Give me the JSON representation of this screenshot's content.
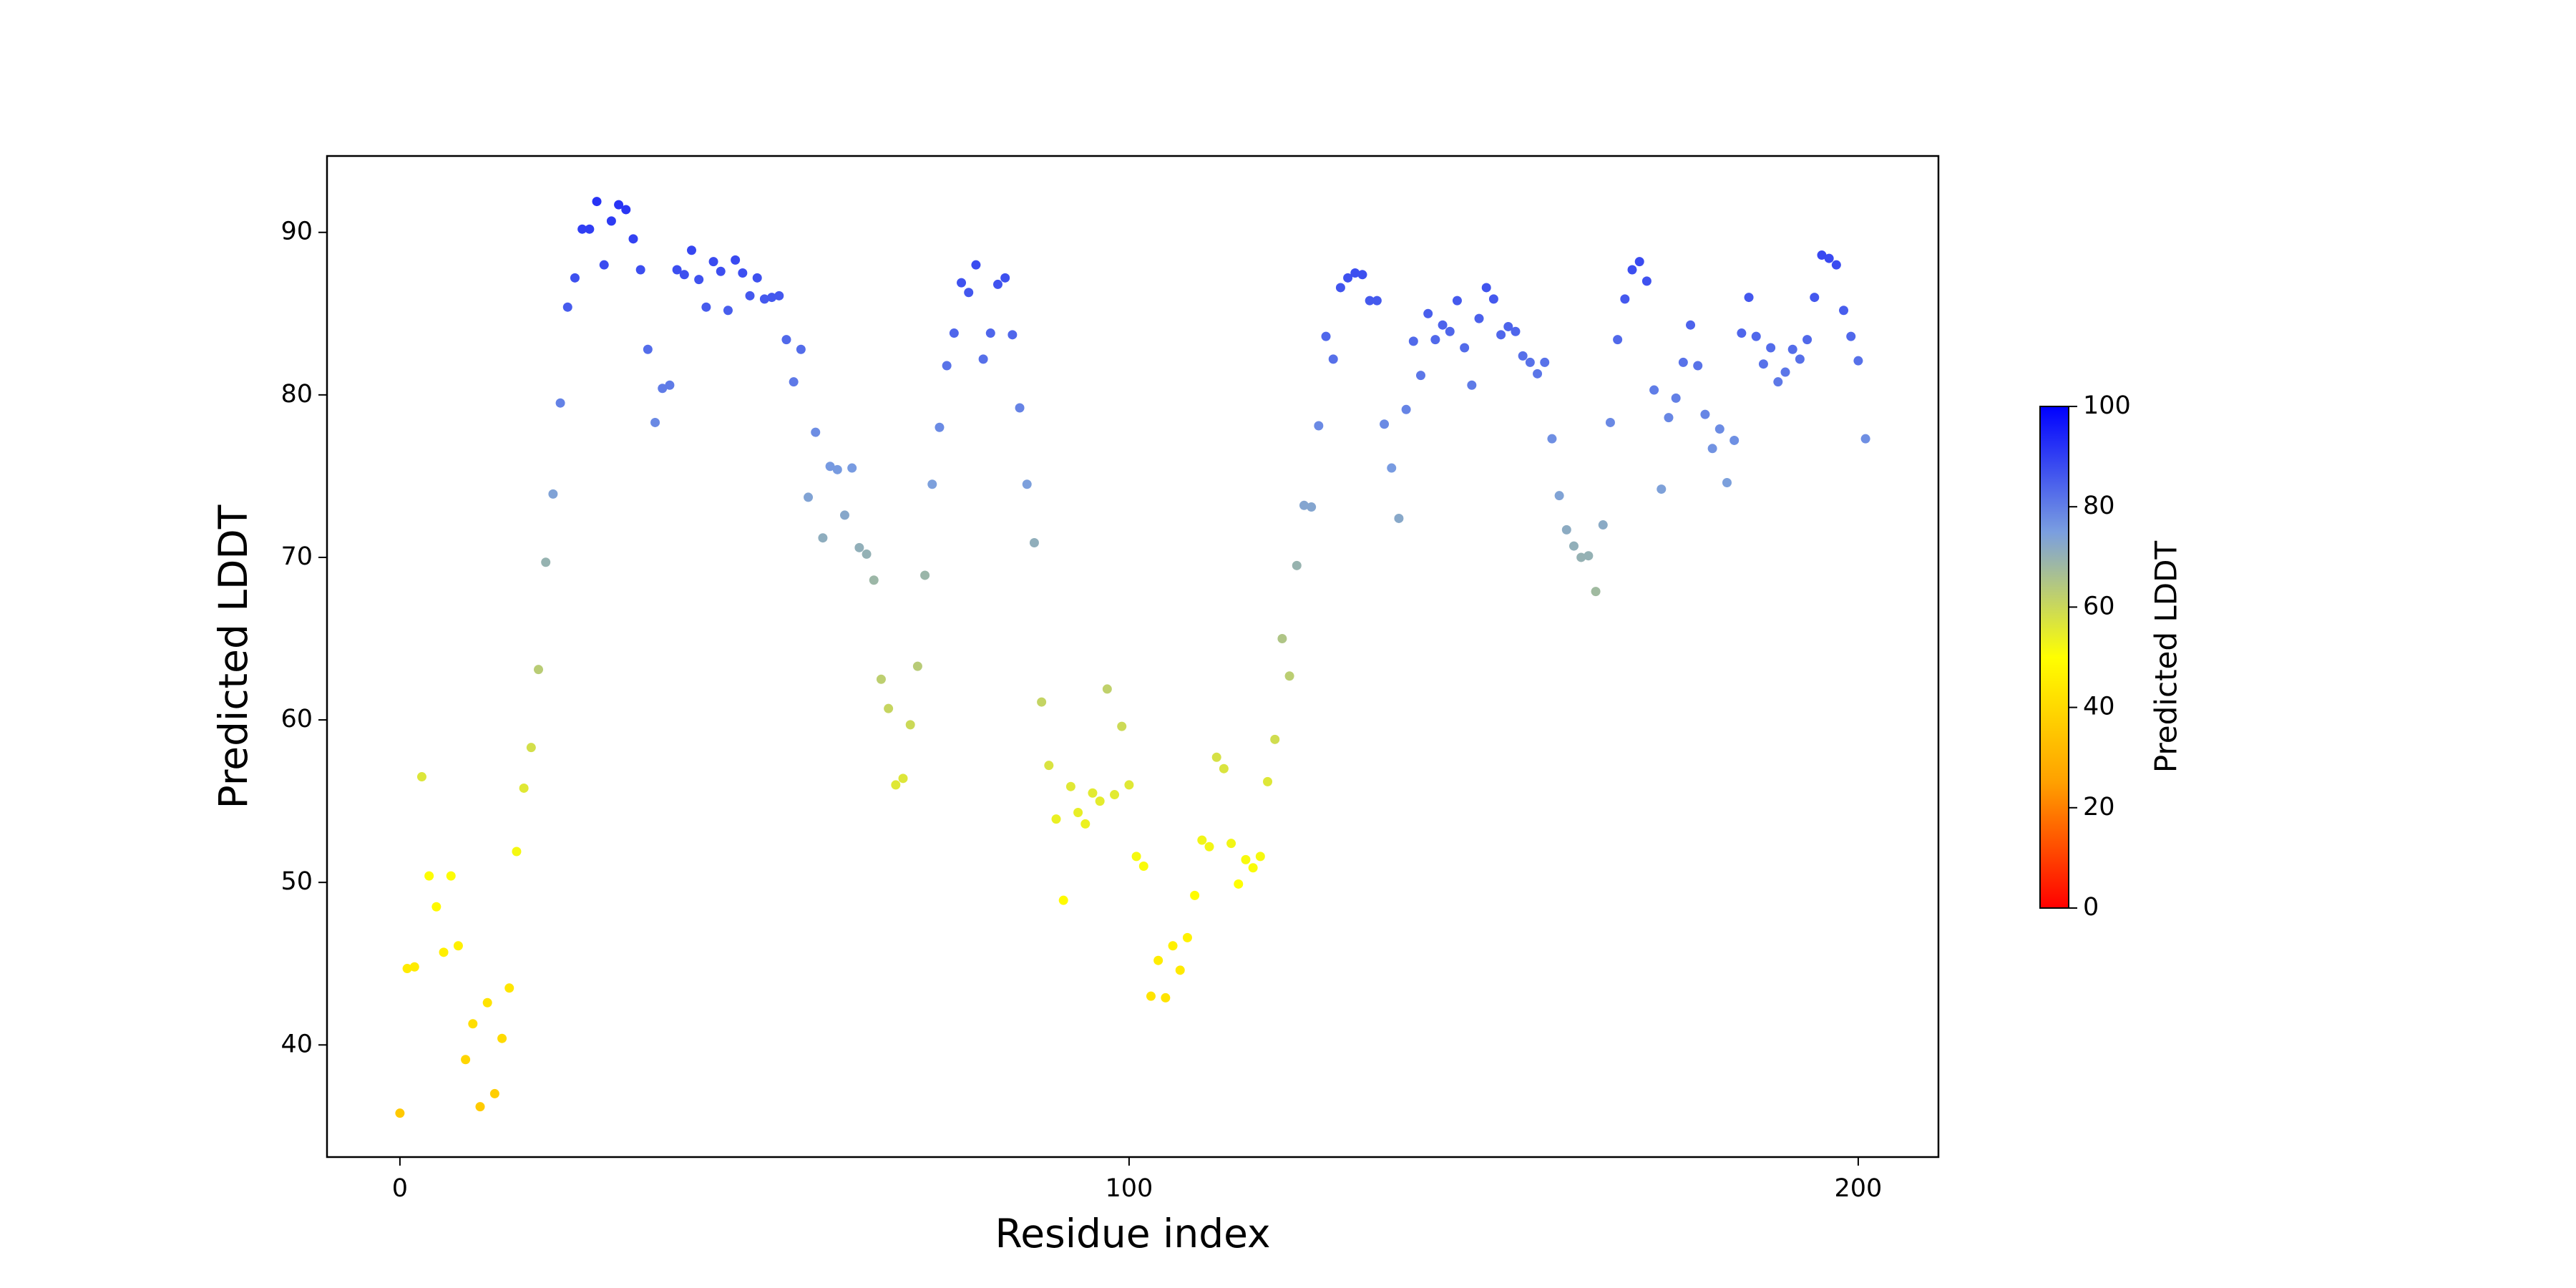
{
  "chart_data": {
    "type": "scatter",
    "xlabel": "Residue index",
    "ylabel": "Predicted LDDT",
    "x": [
      0,
      1,
      2,
      3,
      4,
      5,
      6,
      7,
      8,
      9,
      10,
      11,
      12,
      13,
      14,
      15,
      16,
      17,
      18,
      19,
      20,
      21,
      22,
      23,
      24,
      25,
      26,
      27,
      28,
      29,
      30,
      31,
      32,
      33,
      34,
      35,
      36,
      37,
      38,
      39,
      40,
      41,
      42,
      43,
      44,
      45,
      46,
      47,
      48,
      49,
      50,
      51,
      52,
      53,
      54,
      55,
      56,
      57,
      58,
      59,
      60,
      61,
      62,
      63,
      64,
      65,
      66,
      67,
      68,
      69,
      70,
      71,
      72,
      73,
      74,
      75,
      76,
      77,
      78,
      79,
      80,
      81,
      82,
      83,
      84,
      85,
      86,
      87,
      88,
      89,
      90,
      91,
      92,
      93,
      94,
      95,
      96,
      97,
      98,
      99,
      100,
      101,
      102,
      103,
      104,
      105,
      106,
      107,
      108,
      109,
      110,
      111,
      112,
      113,
      114,
      115,
      116,
      117,
      118,
      119,
      120,
      121,
      122,
      123,
      124,
      125,
      126,
      127,
      128,
      129,
      130,
      131,
      132,
      133,
      134,
      135,
      136,
      137,
      138,
      139,
      140,
      141,
      142,
      143,
      144,
      145,
      146,
      147,
      148,
      149,
      150,
      151,
      152,
      153,
      154,
      155,
      156,
      157,
      158,
      159,
      160,
      161,
      162,
      163,
      164,
      165,
      166,
      167,
      168,
      169,
      170,
      171,
      172,
      173,
      174,
      175,
      176,
      177,
      178,
      179,
      180,
      181,
      182,
      183,
      184,
      185,
      186,
      187,
      188,
      189,
      190,
      191,
      192,
      193,
      194,
      195,
      196,
      197,
      198,
      199,
      200,
      201
    ],
    "values": [
      35.8,
      44.7,
      44.8,
      56.5,
      50.4,
      48.5,
      45.7,
      50.4,
      46.1,
      39.1,
      41.3,
      36.2,
      42.6,
      37.0,
      40.4,
      43.5,
      51.9,
      55.8,
      58.3,
      63.1,
      69.7,
      73.9,
      79.5,
      85.4,
      87.2,
      90.2,
      90.2,
      91.9,
      88.0,
      90.7,
      91.7,
      91.4,
      89.6,
      87.7,
      82.8,
      78.3,
      80.4,
      80.6,
      87.7,
      87.4,
      88.9,
      87.1,
      85.4,
      88.2,
      87.6,
      85.2,
      88.3,
      87.5,
      86.1,
      87.2,
      85.9,
      86.0,
      86.1,
      83.4,
      80.8,
      82.8,
      73.7,
      77.7,
      71.2,
      75.6,
      75.4,
      72.6,
      75.5,
      70.6,
      70.2,
      68.6,
      62.5,
      60.7,
      56.0,
      56.4,
      59.7,
      63.3,
      68.9,
      74.5,
      78.0,
      81.8,
      83.8,
      86.9,
      86.3,
      88.0,
      82.2,
      83.8,
      86.8,
      87.2,
      83.7,
      79.2,
      74.5,
      70.9,
      61.1,
      57.2,
      53.9,
      48.9,
      55.9,
      54.3,
      53.6,
      55.5,
      55.0,
      61.9,
      55.4,
      59.6,
      56.0,
      51.6,
      51.0,
      43.0,
      45.2,
      42.9,
      46.1,
      44.6,
      46.6,
      49.2,
      52.6,
      52.2,
      57.7,
      57.0,
      52.4,
      49.9,
      51.4,
      50.9,
      51.6,
      56.2,
      58.8,
      65.0,
      62.7,
      69.5,
      73.2,
      73.1,
      78.1,
      83.6,
      82.2,
      86.6,
      87.2,
      87.5,
      87.4,
      85.8,
      85.8,
      78.2,
      75.5,
      72.4,
      79.1,
      83.3,
      81.2,
      85.0,
      83.4,
      84.3,
      83.9,
      85.8,
      82.9,
      80.6,
      84.7,
      86.6,
      85.9,
      83.7,
      84.2,
      83.9,
      82.4,
      82.0,
      81.3,
      82.0,
      77.3,
      73.8,
      71.7,
      70.7,
      70.0,
      70.1,
      67.9,
      72.0,
      78.3,
      83.4,
      85.9,
      87.7,
      88.2,
      87.0,
      80.3,
      74.2,
      78.6,
      79.8,
      82.0,
      84.3,
      81.8,
      78.8,
      76.7,
      77.9,
      74.6,
      77.2,
      83.8,
      86.0,
      83.6,
      81.9,
      82.9,
      80.8,
      81.4,
      82.8,
      82.2,
      83.4,
      86.0,
      88.6,
      88.4,
      88.0,
      85.2,
      83.6,
      82.1,
      77.3
    ],
    "xlim": [
      -10,
      211
    ],
    "xticks": [
      0,
      100,
      200
    ],
    "ylim": [
      33.1,
      94.7
    ],
    "yticks": [
      40,
      50,
      60,
      70,
      80,
      90
    ],
    "colorbar": {
      "label": "Predicted LDDT",
      "lim": [
        0,
        100
      ],
      "ticks": [
        0,
        20,
        40,
        60,
        80,
        100
      ],
      "colors": [
        "#ff0000",
        "#ffa000",
        "#ffff00",
        "#7a9ee0",
        "#0000ff"
      ]
    }
  }
}
